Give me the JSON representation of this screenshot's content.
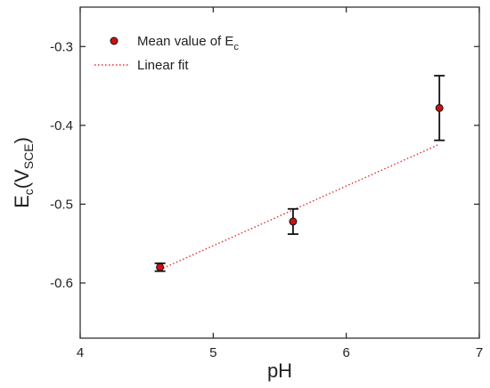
{
  "chart_data": {
    "type": "scatter",
    "title": "",
    "xlabel": "pH",
    "ylabel": {
      "main": "E",
      "sub": "c",
      "unit_main": "V",
      "unit_sub": "SCE"
    },
    "xlim": [
      4,
      7
    ],
    "ylim": [
      -0.67,
      -0.25
    ],
    "x_ticks": [
      4,
      5,
      6,
      7
    ],
    "x_tick_labels": [
      "4",
      "5",
      "6",
      "7"
    ],
    "y_ticks": [
      -0.6,
      -0.5,
      -0.4,
      -0.3
    ],
    "y_tick_labels": [
      "-0.6",
      "-0.5",
      "-0.4",
      "-0.3"
    ],
    "grid": false,
    "legend_position": "top-left",
    "series": [
      {
        "name": "Mean value of E",
        "name_sub": "c",
        "kind": "points-with-error-bars",
        "color": "#cc1111",
        "x": [
          4.6,
          5.6,
          6.7
        ],
        "y": [
          -0.58,
          -0.522,
          -0.378
        ],
        "error": [
          0.005,
          0.016,
          0.041
        ]
      },
      {
        "name": "Linear fit",
        "kind": "dotted-line",
        "color": "#e03030",
        "x": [
          4.6,
          6.7
        ],
        "y": [
          -0.583,
          -0.424
        ]
      }
    ]
  }
}
